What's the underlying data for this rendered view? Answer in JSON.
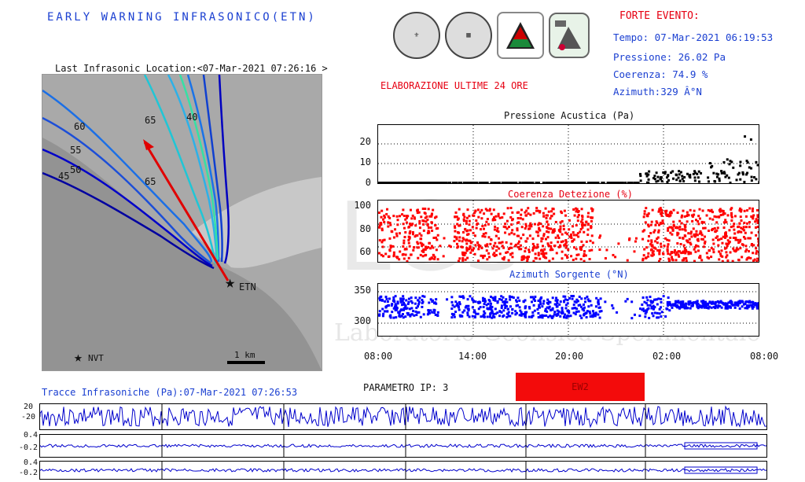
{
  "header": {
    "title": "EARLY WARNING INFRASONICO(ETN)",
    "elaboration": "ELABORAZIONE ULTIME 24 ORE",
    "last_location": "Last Infrasonic Location:<07-Mar-2021 07:26:16 >"
  },
  "event": {
    "title": "FORTE EVENTO:",
    "time": "Tempo: 07-Mar-2021 06:19:53",
    "pressure": "Pressione: 26.02 Pa",
    "coherence": "Coerenza: 74.9 %",
    "azimuth": "Azimuth:329 Â°N"
  },
  "map": {
    "contour_labels": [
      "40",
      "50",
      "55",
      "60",
      "65",
      "60",
      "65",
      "45",
      "50"
    ],
    "station_labels": [
      "ETN",
      "NVT"
    ],
    "scale_label": "1 km"
  },
  "panels": {
    "pressure_title": "Pressione Acustica (Pa)",
    "coherence_title": "Coerenza Detezione (%)",
    "azimuth_title": "Azimuth Sorgente (°N)",
    "pressure_ticks": [
      "20",
      "10",
      "0"
    ],
    "coherence_ticks": [
      "100",
      "80",
      "60"
    ],
    "azimuth_ticks": [
      "350",
      "300"
    ],
    "x_ticks": [
      "08:00",
      "14:00",
      "20:00",
      "02:00",
      "08:00"
    ]
  },
  "traces": {
    "title": "Tracce Infrasoniche (Pa):07-Mar-2021 07:26:53",
    "parameter": "PARAMETRO IP: 3",
    "badge": "EW2",
    "ticks": [
      "20",
      "-20",
      "0.4",
      "-0.2",
      "0.4",
      "-0.2",
      "0.4",
      "-0.2"
    ]
  },
  "watermark": {
    "text": "Laboratorio Geofisica Sperimentale",
    "logo": "LGS"
  },
  "colors": {
    "title_blue": "#1a3fd1",
    "event_red": "#e60012",
    "coherence_red": "#ff0000",
    "azimuth_blue": "#0000ff",
    "badge_red": "#f30b0b"
  }
}
